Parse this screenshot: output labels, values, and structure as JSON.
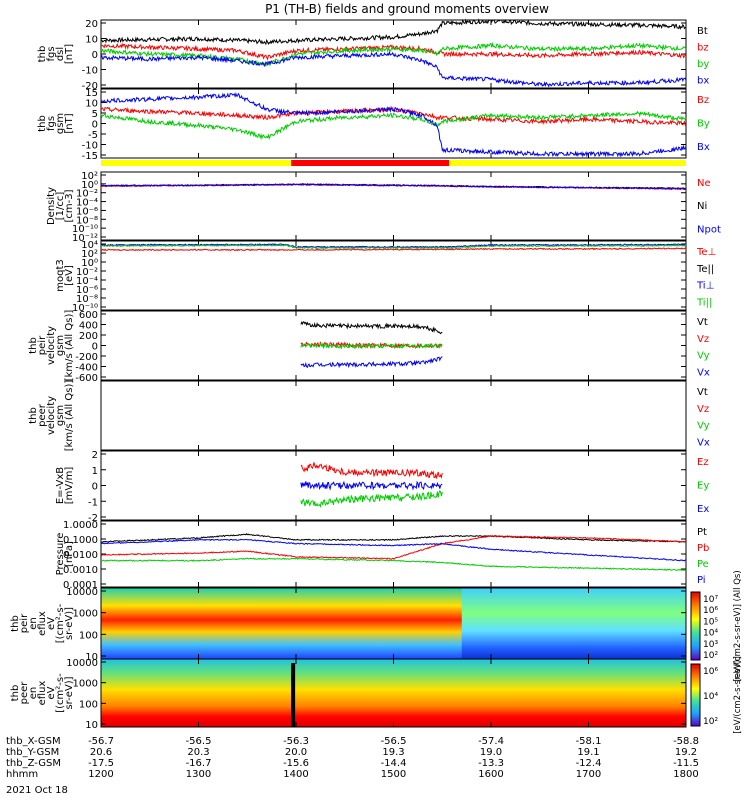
{
  "title": "P1 (TH-B) fields and ground moments overview",
  "date_label": "2021 Oct 18",
  "ephemeris": {
    "rows": [
      {
        "label": "thb_X-GSM",
        "values": [
          "-56.7",
          "-56.5",
          "-56.3",
          "-56.5",
          "-57.4",
          "-58.1",
          "-58.8"
        ]
      },
      {
        "label": "thb_Y-GSM",
        "values": [
          "20.6",
          "20.3",
          "20.0",
          "19.3",
          "19.0",
          "19.1",
          "19.2"
        ]
      },
      {
        "label": "thb_Z-GSM",
        "values": [
          "-17.5",
          "-16.7",
          "-15.6",
          "-14.4",
          "-13.3",
          "-12.4",
          "-11.5"
        ]
      },
      {
        "label": "hhmm",
        "values": [
          "1200",
          "1300",
          "1400",
          "1500",
          "1600",
          "1700",
          "1800"
        ]
      }
    ]
  },
  "colorbars": [
    {
      "ticks": [
        "10⁷",
        "10⁶",
        "10⁵",
        "10⁴",
        "10³",
        "10²"
      ],
      "label": "[eV/(cm2-s-sr-eV)] (All Qs)"
    },
    {
      "ticks": [
        "10⁶",
        "10⁴",
        "10²"
      ],
      "label": "[eV/(cm2-s-sr-eV)]"
    }
  ],
  "chart_data": [
    {
      "type": "line",
      "id": "fgs_dsl",
      "ylabel": [
        "thb",
        "fgs",
        "dsl",
        "[nT]"
      ],
      "ylim": [
        -20,
        20
      ],
      "yticks": [
        "20",
        "10",
        "0",
        "-10",
        "-20"
      ],
      "series": [
        {
          "name": "Bt",
          "color": "#000000",
          "x": [
            12,
            12.5,
            13,
            13.4,
            13.7,
            14,
            14.5,
            15,
            15.3,
            15.45,
            15.5,
            16,
            16.5,
            17,
            17.5,
            18
          ],
          "y": [
            8,
            8.5,
            9,
            8,
            7,
            8,
            9,
            10,
            12,
            14,
            18,
            19.5,
            18,
            17.5,
            17,
            16
          ]
        },
        {
          "name": "bz",
          "color": "#ff0000",
          "x": [
            12,
            12.5,
            13,
            13.4,
            13.7,
            14,
            14.5,
            15,
            15.3,
            15.45,
            15.5,
            16,
            16.5,
            17,
            17.5,
            18
          ],
          "y": [
            5,
            4,
            3,
            2,
            -2,
            2,
            3,
            4,
            3,
            1,
            0,
            0,
            -1,
            0,
            1,
            -1
          ]
        },
        {
          "name": "by",
          "color": "#00cc00",
          "x": [
            12,
            12.5,
            13,
            13.4,
            13.7,
            14,
            14.5,
            15,
            15.3,
            15.45,
            15.5,
            16,
            16.5,
            17,
            17.5,
            18
          ],
          "y": [
            2,
            0,
            -1,
            -3,
            -6,
            0,
            2,
            3,
            2,
            0,
            3,
            5,
            3,
            3,
            5,
            3
          ]
        },
        {
          "name": "bx",
          "color": "#0000ff",
          "x": [
            12,
            12.5,
            13,
            13.4,
            13.7,
            14,
            14.5,
            15,
            15.3,
            15.45,
            15.5,
            16,
            16.5,
            17,
            17.5,
            18
          ],
          "y": [
            -2,
            -3,
            -2,
            -4,
            -6,
            -2,
            -1,
            0,
            -4,
            -8,
            -14,
            -15,
            -18,
            -17,
            -17,
            -15
          ]
        }
      ]
    },
    {
      "type": "line",
      "id": "fgs_gsm",
      "ylabel": [
        "thb",
        "fgs",
        "gsm",
        "[nT]"
      ],
      "ylim": [
        -18,
        16
      ],
      "yticks": [
        "15",
        "10",
        "5",
        "0",
        "-5",
        "-10",
        "-15"
      ],
      "series": [
        {
          "name": "Bz",
          "color": "#ff0000",
          "x": [
            12,
            12.5,
            13,
            13.4,
            13.7,
            14,
            14.5,
            15,
            15.3,
            15.45,
            15.5,
            16,
            16.5,
            17,
            17.5,
            18
          ],
          "y": [
            6,
            5,
            4,
            3,
            2,
            4,
            5,
            6,
            4,
            2,
            2,
            1,
            0,
            1,
            0,
            -1
          ]
        },
        {
          "name": "By",
          "color": "#00cc00",
          "x": [
            12,
            12.5,
            13,
            13.4,
            13.7,
            14,
            14.5,
            15,
            15.3,
            15.45,
            15.5,
            16,
            16.5,
            17,
            17.5,
            18
          ],
          "y": [
            3,
            0,
            -2,
            -4,
            -8,
            0,
            2,
            3,
            1,
            -2,
            0,
            3,
            2,
            3,
            4,
            1
          ]
        },
        {
          "name": "Bx",
          "color": "#0000ff",
          "x": [
            12,
            12.5,
            13,
            13.4,
            13.7,
            14,
            14.5,
            15,
            15.3,
            15.45,
            15.5,
            16,
            16.5,
            17,
            17.5,
            18
          ],
          "y": [
            10,
            11,
            12,
            13,
            6,
            4,
            5,
            6,
            3,
            -2,
            -14,
            -15,
            -16,
            -16,
            -16,
            -13
          ]
        }
      ]
    },
    {
      "type": "line",
      "id": "density",
      "log": true,
      "ylabel": [
        "Density",
        "[1/cc]",
        "[cm-3]"
      ],
      "ylim": [
        -12,
        3
      ],
      "yticks": [
        "10²",
        "10⁰",
        "10⁻²",
        "10⁻⁴",
        "10⁻⁶",
        "10⁻⁸",
        "10⁻¹⁰",
        "10⁻¹²"
      ],
      "legend": [
        {
          "name": "Ne",
          "color": "#ff0000"
        },
        {
          "name": "Ni",
          "color": "#000000"
        },
        {
          "name": "Npot",
          "color": "#0000ff"
        }
      ],
      "series": [
        {
          "name": "Ni",
          "color": "#000000",
          "x": [
            12,
            13,
            14,
            15,
            15.5,
            16,
            17,
            18
          ],
          "y": [
            0.0,
            0.1,
            0.3,
            0.1,
            0.0,
            -0.2,
            -0.4,
            -0.6
          ]
        },
        {
          "name": "Ne",
          "color": "#ff0000",
          "x": [
            12,
            13,
            14,
            15,
            15.5,
            16,
            17,
            18
          ],
          "y": [
            -0.1,
            0.0,
            0.2,
            0.0,
            -0.1,
            -0.3,
            -0.5,
            -0.8
          ]
        },
        {
          "name": "Npot",
          "color": "#0000ff",
          "x": [
            12,
            13,
            14,
            15,
            15.5,
            16,
            17,
            18
          ],
          "y": [
            0.0,
            0.05,
            0.25,
            0.05,
            -0.05,
            -0.25,
            -0.45,
            -0.7
          ]
        }
      ]
    },
    {
      "type": "line",
      "id": "temperature",
      "log": true,
      "ylabel": [
        "moqt3",
        "[eV]"
      ],
      "ylim": [
        -10,
        4
      ],
      "yticks": [
        "10⁴",
        "10²",
        "10⁰",
        "10⁻²",
        "10⁻⁴",
        "10⁻⁶",
        "10⁻⁸",
        "10⁻¹⁰"
      ],
      "legend": [
        {
          "name": "Te⊥",
          "color": "#ff0000"
        },
        {
          "name": "Te||",
          "color": "#000000"
        },
        {
          "name": "Ti⊥",
          "color": "#0000ff"
        },
        {
          "name": "Ti||",
          "color": "#00cc00"
        }
      ],
      "series": [
        {
          "name": "Ti⊥",
          "color": "#0000ff",
          "x": [
            12,
            13.9,
            14.0,
            15.6,
            16,
            17,
            18
          ],
          "y": [
            3.2,
            3.3,
            2.8,
            2.8,
            3.2,
            3.2,
            3.3
          ]
        },
        {
          "name": "Ti||",
          "color": "#00cc00",
          "x": [
            12,
            13.9,
            14.0,
            15.6,
            16,
            17,
            18
          ],
          "y": [
            3.0,
            3.1,
            2.6,
            2.6,
            3.0,
            3.0,
            3.1
          ]
        },
        {
          "name": "Te⊥",
          "color": "#ff0000",
          "x": [
            12,
            14,
            15.6,
            16,
            17,
            18
          ],
          "y": [
            2.2,
            2.2,
            2.3,
            2.4,
            2.4,
            2.5
          ]
        }
      ]
    },
    {
      "type": "line",
      "id": "peir_velocity",
      "ylabel": [
        "thb",
        "peir",
        "velocity",
        "gsm",
        "[km/s (All Qs)]"
      ],
      "ylim": [
        -600,
        600
      ],
      "yticks": [
        "600",
        "400",
        "200",
        "0",
        "-200",
        "-400",
        "-600"
      ],
      "legend": [
        {
          "name": "Vt",
          "color": "#000000"
        },
        {
          "name": "Vz",
          "color": "#ff0000"
        },
        {
          "name": "Vy",
          "color": "#00cc00"
        },
        {
          "name": "Vx",
          "color": "#0000ff"
        }
      ],
      "series": [
        {
          "name": "Vt",
          "color": "#000000",
          "x": [
            14.05,
            14.2,
            14.5,
            15,
            15.3,
            15.5
          ],
          "y": [
            380,
            350,
            340,
            340,
            320,
            230
          ]
        },
        {
          "name": "Vz",
          "color": "#ff0000",
          "x": [
            14.05,
            14.5,
            15,
            15.5
          ],
          "y": [
            20,
            10,
            0,
            0
          ]
        },
        {
          "name": "Vy",
          "color": "#00cc00",
          "x": [
            14.05,
            14.5,
            15,
            15.5
          ],
          "y": [
            0,
            -10,
            -10,
            -5
          ]
        },
        {
          "name": "Vx",
          "color": "#0000ff",
          "x": [
            14.05,
            14.2,
            14.5,
            15,
            15.3,
            15.5
          ],
          "y": [
            -350,
            -340,
            -330,
            -320,
            -300,
            -220
          ]
        }
      ]
    },
    {
      "type": "line",
      "id": "peer_velocity",
      "ylabel": [
        "thb",
        "peer",
        "velocity",
        "gsm",
        "[km/s (All Qs)]"
      ],
      "legend": [
        {
          "name": "Vt",
          "color": "#000000"
        },
        {
          "name": "Vz",
          "color": "#ff0000"
        },
        {
          "name": "Vy",
          "color": "#00cc00"
        },
        {
          "name": "Vx",
          "color": "#0000ff"
        }
      ],
      "series": []
    },
    {
      "type": "line",
      "id": "efield",
      "ylabel": [
        "E=-VxB",
        "[mV/m]"
      ],
      "ylim": [
        -2.5,
        2.5
      ],
      "yticks": [
        "2",
        "1",
        "0",
        "-1",
        "-2"
      ],
      "legend": [
        {
          "name": "Ez",
          "color": "#ff0000"
        },
        {
          "name": "Ey",
          "color": "#00cc00"
        },
        {
          "name": "Ex",
          "color": "#0000ff"
        }
      ],
      "series": [
        {
          "name": "Ez",
          "color": "#ff0000",
          "x": [
            14.05,
            14.2,
            14.5,
            15,
            15.3,
            15.5
          ],
          "y": [
            1.2,
            1.5,
            1.0,
            0.9,
            0.9,
            0.7
          ]
        },
        {
          "name": "Ey",
          "color": "#00cc00",
          "x": [
            14.05,
            14.2,
            14.5,
            15,
            15.3,
            15.5
          ],
          "y": [
            -1.2,
            -1.4,
            -1.0,
            -0.9,
            -0.8,
            -0.6
          ]
        },
        {
          "name": "Ex",
          "color": "#0000ff",
          "x": [
            14.05,
            14.2,
            14.5,
            15,
            15.5
          ],
          "y": [
            0.1,
            0.0,
            0.0,
            0.0,
            0.0
          ]
        }
      ]
    },
    {
      "type": "line",
      "id": "pressure",
      "log": true,
      "ylabel": [
        "Pressure",
        "[nPa]"
      ],
      "ylim": [
        -3.3,
        0.2
      ],
      "yticks": [
        "1.0000",
        "0.1000",
        "0.0100",
        "0.0010",
        "0.0001"
      ],
      "legend": [
        {
          "name": "Pt",
          "color": "#000000"
        },
        {
          "name": "Pb",
          "color": "#ff0000"
        },
        {
          "name": "Pe",
          "color": "#00cc00"
        },
        {
          "name": "Pi",
          "color": "#0000ff"
        }
      ],
      "series": [
        {
          "name": "Pt",
          "color": "#000000",
          "x": [
            12,
            13,
            13.5,
            14,
            15,
            15.5,
            16,
            17,
            18
          ],
          "y": [
            -0.9,
            -0.7,
            -0.5,
            -0.8,
            -0.8,
            -0.6,
            -0.6,
            -0.8,
            -0.9
          ]
        },
        {
          "name": "Pb",
          "color": "#ff0000",
          "x": [
            12,
            13,
            13.5,
            14,
            15,
            15.5,
            16,
            17,
            18
          ],
          "y": [
            -1.6,
            -1.5,
            -1.4,
            -1.7,
            -1.8,
            -1.0,
            -0.6,
            -0.7,
            -0.9
          ]
        },
        {
          "name": "Pe",
          "color": "#00cc00",
          "x": [
            12,
            13,
            13.5,
            14,
            15,
            15.5,
            16,
            17,
            18
          ],
          "y": [
            -1.9,
            -1.9,
            -1.8,
            -1.8,
            -1.9,
            -2.0,
            -2.2,
            -2.3,
            -2.4
          ]
        },
        {
          "name": "Pi",
          "color": "#0000ff",
          "x": [
            12,
            13,
            13.5,
            14,
            15,
            15.5,
            16,
            17,
            18
          ],
          "y": [
            -1.0,
            -0.8,
            -0.8,
            -1.0,
            -1.1,
            -1.0,
            -1.3,
            -1.6,
            -1.9
          ]
        }
      ]
    },
    {
      "type": "heatmap",
      "id": "peir_en_eflux",
      "ylabel": [
        "thb",
        "peir",
        "en",
        "eflux",
        "eV",
        "[(cm²-s-",
        "sr-eV)]"
      ],
      "yticks": [
        "10000",
        "1000",
        "100",
        "10"
      ],
      "ylim_log": [
        0.8,
        4.3
      ]
    },
    {
      "type": "heatmap",
      "id": "peer_en_eflux",
      "ylabel": [
        "thb",
        "peer",
        "en",
        "eflux",
        "eV",
        "[(cm²-s-",
        "sr-eV)]"
      ],
      "yticks": [
        "10000",
        "1000",
        "100",
        "10"
      ],
      "ylim_log": [
        0.8,
        4.3
      ]
    }
  ],
  "mode_bar": {
    "segments": [
      {
        "from": 12.0,
        "to": 13.95,
        "color": "#ffff00"
      },
      {
        "from": 13.95,
        "to": 15.57,
        "color": "#ff0000"
      },
      {
        "from": 15.57,
        "to": 18.0,
        "color": "#ffff00"
      }
    ]
  }
}
